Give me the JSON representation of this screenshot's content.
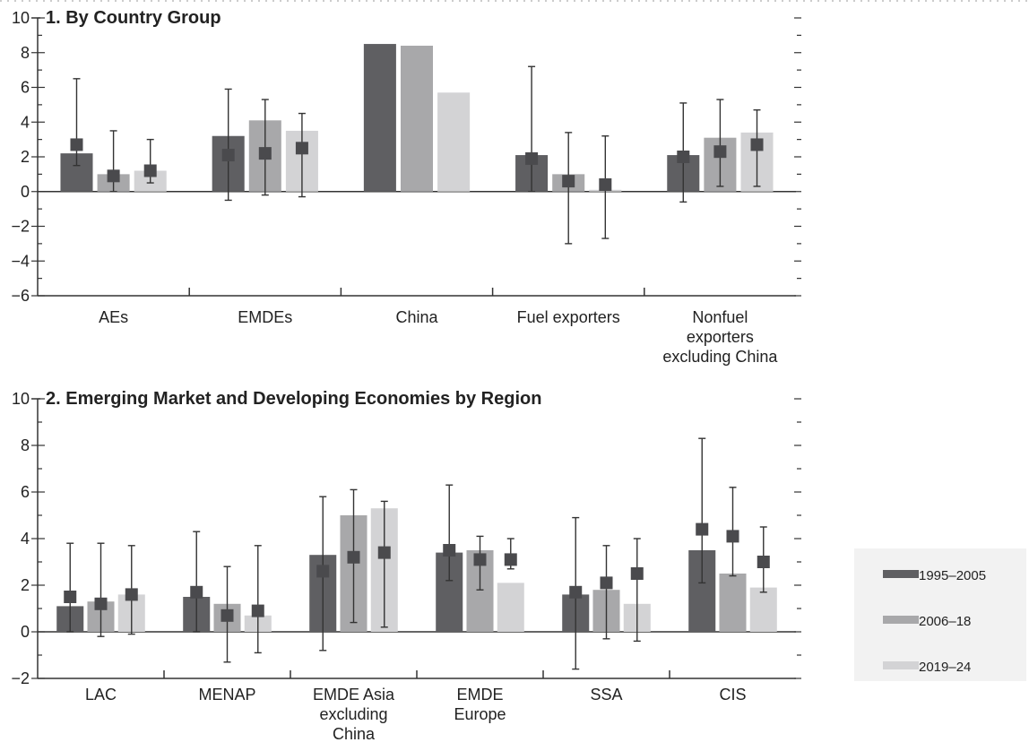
{
  "colors": {
    "s1": "#5f5f62",
    "s2": "#a8a8aa",
    "s3": "#d3d3d5",
    "marker": "#4a4a4d",
    "axis": "#333333",
    "legend_bg": "#f2f2f2"
  },
  "legend": [
    "1995–2005",
    "2006–18",
    "2019–24"
  ],
  "chart_data": [
    {
      "type": "bar",
      "title": "1. By Country Group",
      "ylim": [
        -6,
        10
      ],
      "yticks": [
        -6,
        -4,
        -2,
        0,
        2,
        4,
        6,
        8,
        10
      ],
      "y_tick_labels": [
        "−6",
        "−4",
        "−2",
        "0",
        "2",
        "4",
        "6",
        "8",
        "10"
      ],
      "categories": [
        "AEs",
        "EMDEs",
        "China",
        "Fuel exporters",
        "Nonfuel exporters excluding China"
      ],
      "category_label_lines": [
        [
          "AEs"
        ],
        [
          "EMDEs"
        ],
        [
          "China"
        ],
        [
          "Fuel exporters"
        ],
        [
          "Nonfuel",
          "exporters",
          "excluding China"
        ]
      ],
      "series": [
        {
          "name": "1995–2005",
          "values": [
            2.2,
            3.2,
            8.5,
            2.1,
            2.1
          ],
          "median": [
            2.7,
            2.1,
            null,
            1.9,
            2.0
          ],
          "range": [
            [
              1.5,
              6.5
            ],
            [
              -0.5,
              5.9
            ],
            null,
            [
              0.0,
              7.2
            ],
            [
              -0.6,
              5.1
            ]
          ]
        },
        {
          "name": "2006–18",
          "values": [
            1.0,
            4.1,
            8.4,
            1.0,
            3.1
          ],
          "median": [
            0.9,
            2.2,
            null,
            0.6,
            2.3
          ],
          "range": [
            [
              0.0,
              3.5
            ],
            [
              -0.2,
              5.3
            ],
            null,
            [
              -3.0,
              3.4
            ],
            [
              0.3,
              5.3
            ]
          ]
        },
        {
          "name": "2019–24",
          "values": [
            1.2,
            3.5,
            5.7,
            0.1,
            3.4
          ],
          "median": [
            1.2,
            2.5,
            null,
            0.4,
            2.7
          ],
          "range": [
            [
              0.5,
              3.0
            ],
            [
              -0.3,
              4.5
            ],
            null,
            [
              -2.7,
              3.2
            ],
            [
              0.3,
              4.7
            ]
          ]
        }
      ]
    },
    {
      "type": "bar",
      "title": "2. Emerging Market and Developing Economies by Region",
      "ylim": [
        -2,
        10
      ],
      "yticks": [
        -2,
        0,
        2,
        4,
        6,
        8,
        10
      ],
      "y_tick_labels": [
        "−2",
        "0",
        "2",
        "4",
        "6",
        "8",
        "10"
      ],
      "categories": [
        "LAC",
        "MENAP",
        "EMDE Asia excluding China",
        "EMDE Europe",
        "SSA",
        "CIS"
      ],
      "category_label_lines": [
        [
          "LAC"
        ],
        [
          "MENAP"
        ],
        [
          "EMDE Asia",
          "excluding",
          "China"
        ],
        [
          "EMDE",
          "Europe"
        ],
        [
          "SSA"
        ],
        [
          "CIS"
        ]
      ],
      "series": [
        {
          "name": "1995–2005",
          "values": [
            1.1,
            1.5,
            3.3,
            3.4,
            1.6,
            3.5
          ],
          "median": [
            1.5,
            1.7,
            2.6,
            3.5,
            1.7,
            4.4
          ],
          "range": [
            [
              0.0,
              3.8
            ],
            [
              0.0,
              4.3
            ],
            [
              -0.8,
              5.8
            ],
            [
              2.2,
              6.3
            ],
            [
              -1.6,
              4.9
            ],
            [
              2.1,
              8.3
            ]
          ]
        },
        {
          "name": "2006–18",
          "values": [
            1.3,
            1.2,
            5.0,
            3.5,
            1.8,
            2.5
          ],
          "median": [
            1.2,
            0.7,
            3.2,
            3.1,
            2.1,
            4.1
          ],
          "range": [
            [
              -0.2,
              3.8
            ],
            [
              -1.3,
              2.8
            ],
            [
              0.4,
              6.1
            ],
            [
              1.8,
              4.1
            ],
            [
              -0.3,
              3.7
            ],
            [
              2.4,
              6.2
            ]
          ]
        },
        {
          "name": "2019–24",
          "values": [
            1.6,
            0.7,
            5.3,
            2.1,
            1.2,
            1.9
          ],
          "median": [
            1.6,
            0.9,
            3.4,
            3.1,
            2.5,
            3.0
          ],
          "range": [
            [
              -0.1,
              3.7
            ],
            [
              -0.9,
              3.7
            ],
            [
              0.2,
              5.6
            ],
            [
              2.7,
              4.0
            ],
            [
              -0.4,
              4.0
            ],
            [
              1.7,
              4.5
            ]
          ]
        }
      ]
    }
  ]
}
